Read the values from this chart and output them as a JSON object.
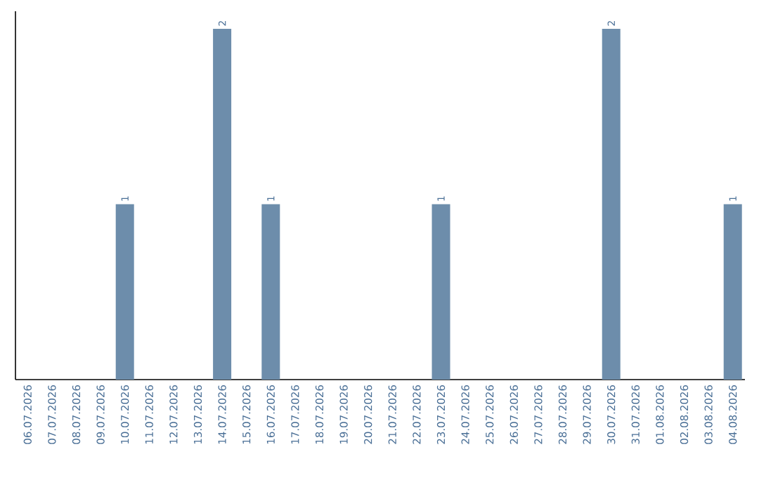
{
  "chart_data": {
    "type": "bar",
    "categories": [
      "06.07.2026",
      "07.07.2026",
      "08.07.2026",
      "09.07.2026",
      "10.07.2026",
      "11.07.2026",
      "12.07.2026",
      "13.07.2026",
      "14.07.2026",
      "15.07.2026",
      "16.07.2026",
      "17.07.2026",
      "18.07.2026",
      "19.07.2026",
      "20.07.2026",
      "21.07.2026",
      "22.07.2026",
      "23.07.2026",
      "24.07.2026",
      "25.07.2026",
      "26.07.2026",
      "27.07.2026",
      "28.07.2026",
      "29.07.2026",
      "30.07.2026",
      "31.07.2026",
      "01.08.2026",
      "02.08.2026",
      "03.08.2026",
      "04.08.2026"
    ],
    "values": [
      0,
      0,
      0,
      0,
      1,
      0,
      0,
      0,
      2,
      0,
      1,
      0,
      0,
      0,
      0,
      0,
      0,
      1,
      0,
      0,
      0,
      0,
      0,
      0,
      2,
      0,
      0,
      0,
      0,
      1
    ],
    "color": "#6d8dab",
    "ylim": [
      0,
      2.1
    ],
    "value_labels": [
      null,
      null,
      null,
      null,
      "1",
      null,
      null,
      null,
      "2",
      null,
      "1",
      null,
      null,
      null,
      null,
      null,
      null,
      "1",
      null,
      null,
      null,
      null,
      null,
      null,
      "2",
      null,
      null,
      null,
      null,
      "1"
    ],
    "tick_labels": "x",
    "grid": false
  }
}
